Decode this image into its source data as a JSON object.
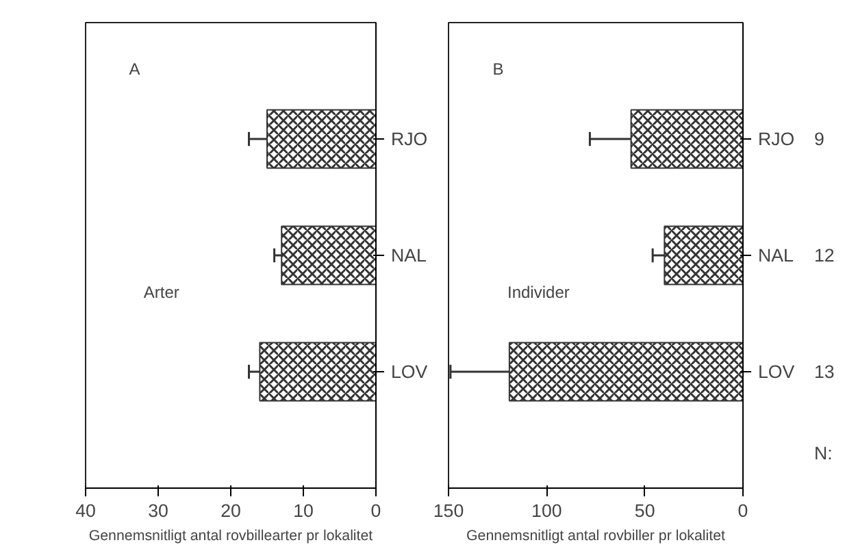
{
  "chart_data": [
    {
      "type": "bar",
      "orientation": "horizontal",
      "categories": [
        "RJO",
        "NAL",
        "LOV"
      ],
      "values": [
        15,
        13,
        16
      ],
      "errors": [
        [
          15,
          17.5
        ],
        [
          13,
          14
        ],
        [
          16,
          17.5
        ]
      ],
      "color": "#333333",
      "xlim": [
        40,
        0
      ],
      "xticks": [
        0,
        10,
        20,
        30,
        40
      ],
      "xlabel": "Gennemsnitligt antal rovbillearter pr lokalitet",
      "annotations": [
        "A",
        "Arter"
      ],
      "grid": false
    },
    {
      "type": "bar",
      "orientation": "horizontal",
      "categories": [
        "RJO",
        "NAL",
        "LOV"
      ],
      "values": [
        57,
        40,
        119
      ],
      "errors": [
        [
          57,
          78
        ],
        [
          40,
          46
        ],
        [
          119,
          149
        ]
      ],
      "color": "#333333",
      "xlim": [
        150,
        0
      ],
      "xticks": [
        0,
        50,
        100,
        150
      ],
      "xlabel": "Gennemsnitligt antal rovbiller pr lokalitet",
      "annotations": [
        "B",
        "Individer",
        "N:",
        "9",
        "12",
        "13"
      ],
      "grid": false
    }
  ]
}
